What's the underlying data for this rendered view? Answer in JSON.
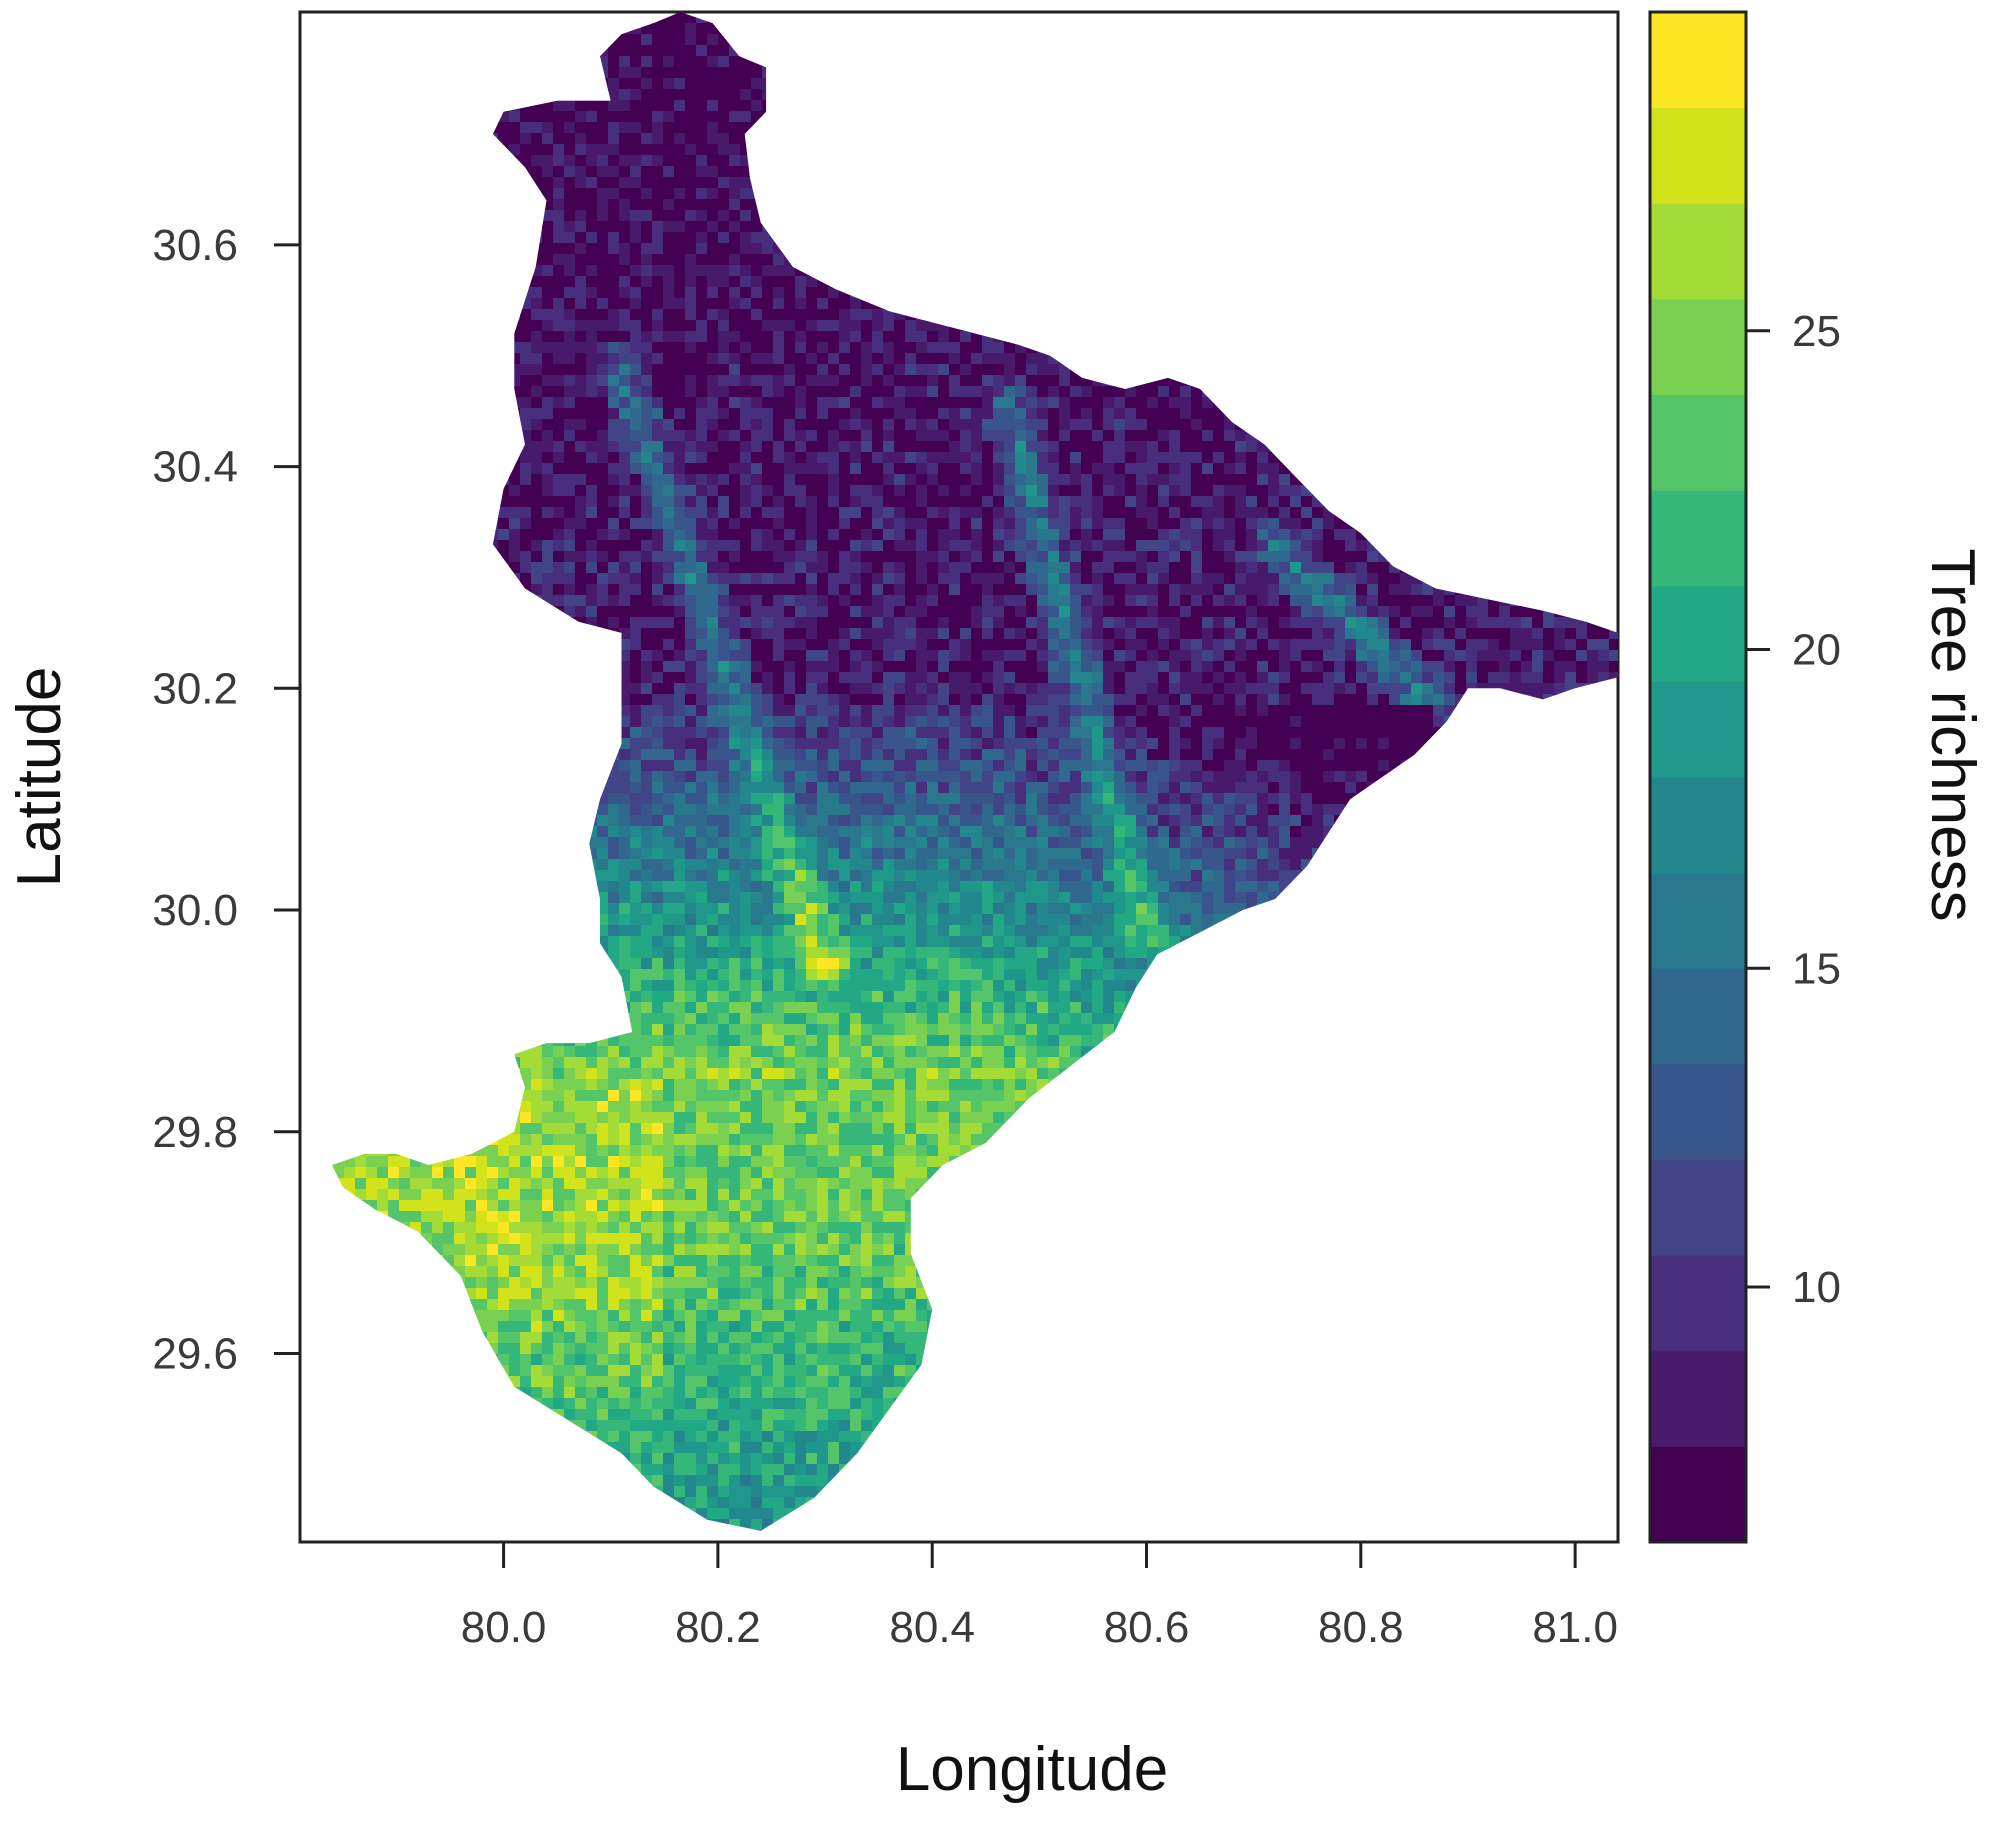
{
  "map": {
    "type": "raster-heatmap",
    "x_axis": {
      "label": "Longitude",
      "range": [
        79.81,
        81.04
      ],
      "ticks": [
        "80.0",
        "80.2",
        "80.4",
        "80.6",
        "80.8",
        "81.0"
      ]
    },
    "y_axis": {
      "label": "Latitude",
      "range": [
        29.43,
        30.81
      ],
      "ticks": [
        "29.6",
        "29.8",
        "30.0",
        "30.2",
        "30.4",
        "30.6"
      ]
    },
    "legend": {
      "title": "Tree richness",
      "placement": "right",
      "range": [
        6,
        30
      ],
      "ticks": [
        "10",
        "15",
        "20",
        "25"
      ],
      "colors": [
        "#440154",
        "#481a6c",
        "#472f7d",
        "#414487",
        "#39568c",
        "#31688e",
        "#2a788e",
        "#23888e",
        "#1f988b",
        "#22a884",
        "#35b779",
        "#54c568",
        "#7ad151",
        "#a5db36",
        "#d2e21b",
        "#fde725"
      ]
    },
    "region_boundary_lonlat": [
      [
        80.165,
        30.81
      ],
      [
        80.195,
        30.8
      ],
      [
        80.22,
        30.77
      ],
      [
        80.245,
        30.76
      ],
      [
        80.245,
        30.72
      ],
      [
        80.225,
        30.7
      ],
      [
        80.23,
        30.66
      ],
      [
        80.24,
        30.62
      ],
      [
        80.27,
        30.58
      ],
      [
        80.31,
        30.56
      ],
      [
        80.36,
        30.54
      ],
      [
        80.4,
        30.53
      ],
      [
        80.44,
        30.52
      ],
      [
        80.48,
        30.51
      ],
      [
        80.51,
        30.5
      ],
      [
        80.54,
        30.48
      ],
      [
        80.58,
        30.47
      ],
      [
        80.62,
        30.48
      ],
      [
        80.65,
        30.47
      ],
      [
        80.68,
        30.44
      ],
      [
        80.71,
        30.42
      ],
      [
        80.74,
        30.39
      ],
      [
        80.77,
        30.36
      ],
      [
        80.8,
        30.34
      ],
      [
        80.83,
        30.31
      ],
      [
        80.87,
        30.29
      ],
      [
        80.92,
        30.28
      ],
      [
        80.97,
        30.27
      ],
      [
        81.01,
        30.26
      ],
      [
        81.04,
        30.25
      ],
      [
        81.04,
        30.21
      ],
      [
        81.0,
        30.2
      ],
      [
        80.97,
        30.19
      ],
      [
        80.93,
        30.2
      ],
      [
        80.9,
        30.2
      ],
      [
        80.88,
        30.17
      ],
      [
        80.85,
        30.14
      ],
      [
        80.82,
        30.12
      ],
      [
        80.79,
        30.1
      ],
      [
        80.77,
        30.07
      ],
      [
        80.75,
        30.04
      ],
      [
        80.72,
        30.01
      ],
      [
        80.69,
        30.0
      ],
      [
        80.65,
        29.98
      ],
      [
        80.61,
        29.96
      ],
      [
        80.59,
        29.93
      ],
      [
        80.57,
        29.89
      ],
      [
        80.53,
        29.86
      ],
      [
        80.49,
        29.83
      ],
      [
        80.45,
        29.79
      ],
      [
        80.41,
        29.77
      ],
      [
        80.38,
        29.74
      ],
      [
        80.38,
        29.69
      ],
      [
        80.4,
        29.64
      ],
      [
        80.39,
        29.59
      ],
      [
        80.36,
        29.55
      ],
      [
        80.33,
        29.51
      ],
      [
        80.29,
        29.47
      ],
      [
        80.24,
        29.44
      ],
      [
        80.19,
        29.45
      ],
      [
        80.14,
        29.48
      ],
      [
        80.11,
        29.51
      ],
      [
        80.06,
        29.54
      ],
      [
        80.01,
        29.57
      ],
      [
        79.98,
        29.62
      ],
      [
        79.96,
        29.67
      ],
      [
        79.92,
        29.71
      ],
      [
        79.88,
        29.73
      ],
      [
        79.85,
        29.75
      ],
      [
        79.84,
        29.77
      ],
      [
        79.87,
        29.78
      ],
      [
        79.9,
        29.78
      ],
      [
        79.93,
        29.77
      ],
      [
        79.97,
        29.78
      ],
      [
        80.01,
        29.8
      ],
      [
        80.02,
        29.84
      ],
      [
        80.01,
        29.87
      ],
      [
        80.04,
        29.88
      ],
      [
        80.08,
        29.88
      ],
      [
        80.12,
        29.89
      ],
      [
        80.11,
        29.94
      ],
      [
        80.09,
        29.97
      ],
      [
        80.09,
        30.01
      ],
      [
        80.08,
        30.06
      ],
      [
        80.09,
        30.1
      ],
      [
        80.11,
        30.15
      ],
      [
        80.11,
        30.2
      ],
      [
        80.11,
        30.25
      ],
      [
        80.07,
        30.26
      ],
      [
        80.02,
        30.29
      ],
      [
        79.99,
        30.33
      ],
      [
        80.0,
        30.38
      ],
      [
        80.02,
        30.42
      ],
      [
        80.01,
        30.47
      ],
      [
        80.01,
        30.52
      ],
      [
        80.03,
        30.58
      ],
      [
        80.04,
        30.64
      ],
      [
        80.02,
        30.67
      ],
      [
        79.99,
        30.7
      ],
      [
        80.0,
        30.72
      ],
      [
        80.05,
        30.73
      ],
      [
        80.1,
        30.73
      ],
      [
        80.09,
        30.77
      ],
      [
        80.11,
        30.79
      ],
      [
        80.14,
        30.8
      ]
    ]
  }
}
